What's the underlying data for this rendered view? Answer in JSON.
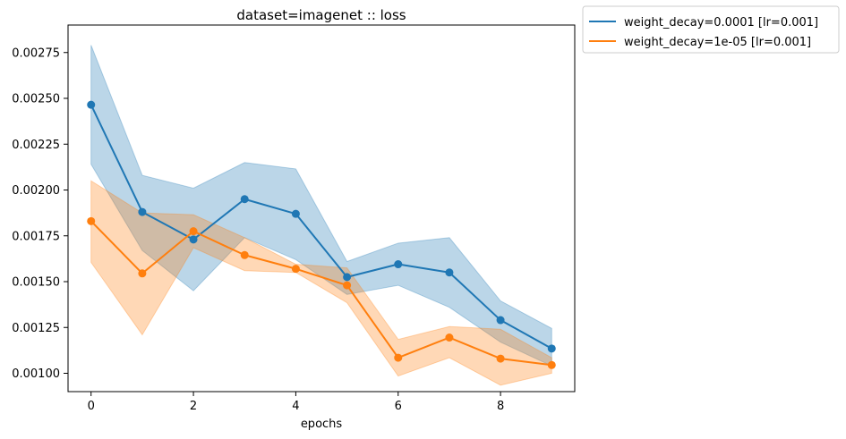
{
  "chart_data": {
    "type": "line",
    "title": "dataset=imagenet :: loss",
    "xlabel": "epochs",
    "ylabel": "",
    "xlim": [
      -0.45,
      9.45
    ],
    "ylim": [
      0.0009,
      0.0029
    ],
    "x_ticks": [
      0,
      2,
      4,
      6,
      8
    ],
    "y_ticks": [
      0.001,
      0.00125,
      0.0015,
      0.00175,
      0.002,
      0.00225,
      0.0025,
      0.00275
    ],
    "y_tick_labels": [
      "0.00100",
      "0.00125",
      "0.00150",
      "0.00175",
      "0.00200",
      "0.00225",
      "0.00250",
      "0.00275"
    ],
    "legend_position": "outside-top-right",
    "grid": false,
    "x": [
      0,
      1,
      2,
      3,
      4,
      5,
      6,
      7,
      8,
      9
    ],
    "series": [
      {
        "name": "weight_decay=0.0001 [lr=0.001]",
        "color": "#1f77b4",
        "values": [
          0.002465,
          0.00188,
          0.00173,
          0.00195,
          0.00187,
          0.001525,
          0.001595,
          0.00155,
          0.00129,
          0.001135
        ],
        "lower": [
          0.00214,
          0.00167,
          0.00145,
          0.00174,
          0.00162,
          0.00143,
          0.00148,
          0.00136,
          0.00117,
          0.00104
        ],
        "upper": [
          0.00279,
          0.00208,
          0.00201,
          0.00215,
          0.002115,
          0.00161,
          0.00171,
          0.00174,
          0.001395,
          0.001245
        ]
      },
      {
        "name": "weight_decay=1e-05 [lr=0.001]",
        "color": "#ff7f0e",
        "values": [
          0.00183,
          0.001545,
          0.001775,
          0.001645,
          0.00157,
          0.00148,
          0.001085,
          0.001195,
          0.00108,
          0.001045
        ],
        "lower": [
          0.001605,
          0.00121,
          0.001685,
          0.00156,
          0.00155,
          0.001385,
          0.000985,
          0.001085,
          0.000935,
          0.001
        ],
        "upper": [
          0.00205,
          0.001875,
          0.001865,
          0.00174,
          0.001595,
          0.001575,
          0.001185,
          0.001255,
          0.00124,
          0.001085
        ]
      }
    ]
  }
}
